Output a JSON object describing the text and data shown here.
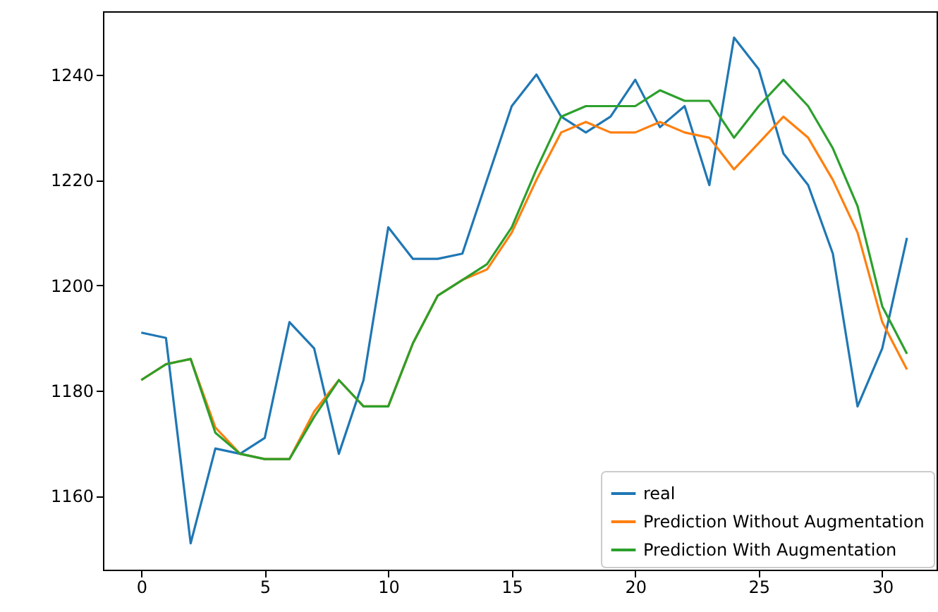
{
  "chart_data": {
    "type": "line",
    "x": [
      0,
      1,
      2,
      3,
      4,
      5,
      6,
      7,
      8,
      9,
      10,
      11,
      12,
      13,
      14,
      15,
      16,
      17,
      18,
      19,
      20,
      21,
      22,
      23,
      24,
      25,
      26,
      27,
      28,
      29,
      30,
      31
    ],
    "series": [
      {
        "name": "real",
        "color": "#1f77b4",
        "values": [
          1191,
          1190,
          1151,
          1169,
          1168,
          1171,
          1193,
          1188,
          1168,
          1182,
          1211,
          1205,
          1205,
          1206,
          1220,
          1234,
          1240,
          1232,
          1229,
          1232,
          1239,
          1230,
          1234,
          1219,
          1247,
          1241,
          1225,
          1219,
          1206,
          1177,
          1188,
          1209
        ]
      },
      {
        "name": "Prediction Without Augmentation",
        "color": "#ff7f0e",
        "values": [
          1182,
          1185,
          1186,
          1173,
          1168,
          1167,
          1167,
          1176,
          1182,
          1177,
          1177,
          1189,
          1198,
          1201,
          1203,
          1210,
          1220,
          1229,
          1231,
          1229,
          1229,
          1231,
          1229,
          1228,
          1222,
          1227,
          1232,
          1228,
          1220,
          1210,
          1193,
          1184
        ]
      },
      {
        "name": "Prediction With Augmentation",
        "color": "#2ca02c",
        "values": [
          1182,
          1185,
          1186,
          1172,
          1168,
          1167,
          1167,
          1175,
          1182,
          1177,
          1177,
          1189,
          1198,
          1201,
          1204,
          1211,
          1222,
          1232,
          1234,
          1234,
          1234,
          1237,
          1235,
          1235,
          1228,
          1234,
          1239,
          1234,
          1226,
          1215,
          1196,
          1187
        ]
      }
    ],
    "xlim": [
      -1.55,
      32.2
    ],
    "xticks": [
      0,
      5,
      10,
      15,
      20,
      25,
      30
    ],
    "ylim": [
      1146,
      1252
    ],
    "yticks": [
      1160,
      1180,
      1200,
      1220,
      1240
    ],
    "grid": false,
    "legend": "bottom right",
    "marker": "none",
    "line_style": "solid"
  }
}
